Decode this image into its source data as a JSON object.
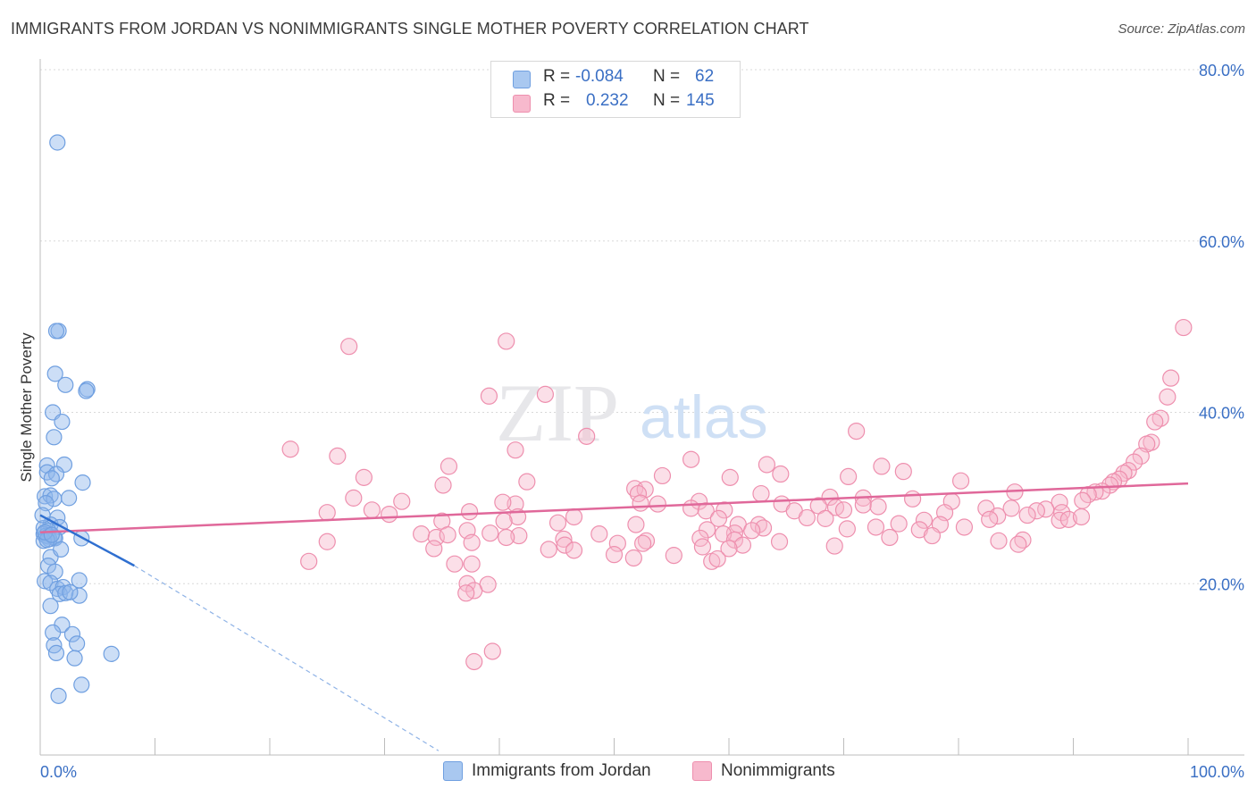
{
  "title": "IMMIGRANTS FROM JORDAN VS NONIMMIGRANTS SINGLE MOTHER POVERTY CORRELATION CHART",
  "source": "Source: ZipAtlas.com",
  "watermark": {
    "zip": "ZIP",
    "atlas": "atlas"
  },
  "legend_top": [
    {
      "r_label": "R =",
      "r_value": "-0.084",
      "n_label": "N =",
      "n_value": "62",
      "color": "#a9c8f0",
      "border": "#6f9fe0"
    },
    {
      "r_label": "R =",
      "r_value": "0.232",
      "n_label": "N =",
      "n_value": "145",
      "color": "#f7b9cd",
      "border": "#ee8fae"
    }
  ],
  "legend_bottom": [
    {
      "label": "Immigrants from Jordan",
      "color": "#a9c8f0",
      "border": "#6f9fe0"
    },
    {
      "label": "Nonimmigrants",
      "color": "#f7b9cd",
      "border": "#ee8fae"
    }
  ],
  "chart_data": {
    "type": "scatter",
    "ylabel": "Single Mother Poverty",
    "xlim": [
      0,
      100
    ],
    "ylim": [
      0,
      80
    ],
    "x_tick_labels": {
      "min": "0.0%",
      "max": "100.0%"
    },
    "y_tick_labels": [
      "20.0%",
      "40.0%",
      "60.0%",
      "80.0%"
    ],
    "y_ticks": [
      20,
      40,
      60,
      80
    ],
    "grid": true,
    "series": [
      {
        "name": "Immigrants from Jordan",
        "color": "#8fb6ea",
        "stroke": "#6f9fe0",
        "trend": {
          "x0": 0,
          "y0": 28.0,
          "x1": 8.2,
          "y1": 22.1,
          "dash_to_x": 34.7,
          "dash_to_y": 0.5
        },
        "points": [
          [
            1.5,
            71.5
          ],
          [
            1.6,
            49.5
          ],
          [
            1.4,
            49.5
          ],
          [
            1.3,
            44.5
          ],
          [
            2.2,
            43.2
          ],
          [
            4.1,
            42.7
          ],
          [
            4.0,
            42.5
          ],
          [
            1.1,
            40.0
          ],
          [
            1.9,
            38.9
          ],
          [
            1.2,
            37.1
          ],
          [
            0.6,
            33.8
          ],
          [
            2.1,
            33.9
          ],
          [
            0.6,
            33.0
          ],
          [
            1.4,
            32.8
          ],
          [
            1.0,
            32.3
          ],
          [
            3.7,
            31.8
          ],
          [
            0.4,
            30.2
          ],
          [
            0.9,
            30.3
          ],
          [
            1.2,
            29.9
          ],
          [
            0.5,
            29.4
          ],
          [
            1.5,
            27.7
          ],
          [
            0.9,
            26.9
          ],
          [
            0.3,
            26.5
          ],
          [
            1.7,
            26.6
          ],
          [
            0.7,
            26.2
          ],
          [
            0.3,
            25.8
          ],
          [
            0.5,
            25.6
          ],
          [
            0.7,
            25.5
          ],
          [
            1.2,
            25.4
          ],
          [
            0.8,
            25.2
          ],
          [
            1.3,
            25.3
          ],
          [
            3.6,
            25.3
          ],
          [
            0.3,
            25.0
          ],
          [
            0.6,
            25.1
          ],
          [
            0.9,
            23.1
          ],
          [
            0.7,
            22.1
          ],
          [
            1.3,
            21.4
          ],
          [
            3.4,
            20.4
          ],
          [
            0.4,
            20.3
          ],
          [
            0.9,
            20.1
          ],
          [
            1.5,
            19.4
          ],
          [
            2.0,
            19.6
          ],
          [
            1.7,
            18.8
          ],
          [
            2.2,
            18.9
          ],
          [
            3.4,
            18.6
          ],
          [
            0.9,
            17.4
          ],
          [
            1.9,
            15.2
          ],
          [
            2.8,
            14.1
          ],
          [
            1.1,
            14.3
          ],
          [
            1.2,
            12.8
          ],
          [
            3.2,
            13.0
          ],
          [
            1.4,
            11.9
          ],
          [
            6.2,
            11.8
          ],
          [
            3.0,
            11.3
          ],
          [
            3.6,
            8.2
          ],
          [
            1.6,
            6.9
          ],
          [
            0.4,
            26.0
          ],
          [
            1.0,
            25.7
          ],
          [
            0.2,
            28.0
          ],
          [
            2.5,
            30.0
          ],
          [
            1.8,
            24.0
          ],
          [
            2.6,
            19.0
          ]
        ]
      },
      {
        "name": "Nonimmigrants",
        "color": "#f7b9cd",
        "stroke": "#ee8fae",
        "trend": {
          "x0": 0,
          "y0": 26.0,
          "x1": 100,
          "y1": 31.7
        },
        "points": [
          [
            26.9,
            47.7
          ],
          [
            40.6,
            48.3
          ],
          [
            99.6,
            49.9
          ],
          [
            98.5,
            44.0
          ],
          [
            98.2,
            41.8
          ],
          [
            44.0,
            42.1
          ],
          [
            39.1,
            41.9
          ],
          [
            97.6,
            39.3
          ],
          [
            97.1,
            38.9
          ],
          [
            71.1,
            37.8
          ],
          [
            47.6,
            37.2
          ],
          [
            96.8,
            36.5
          ],
          [
            96.4,
            36.3
          ],
          [
            95.9,
            34.9
          ],
          [
            21.8,
            35.7
          ],
          [
            25.9,
            34.9
          ],
          [
            41.4,
            35.6
          ],
          [
            56.7,
            34.5
          ],
          [
            95.3,
            34.2
          ],
          [
            94.8,
            33.2
          ],
          [
            35.6,
            33.7
          ],
          [
            73.3,
            33.7
          ],
          [
            63.3,
            33.9
          ],
          [
            75.2,
            33.1
          ],
          [
            94.4,
            32.9
          ],
          [
            64.5,
            32.8
          ],
          [
            54.2,
            32.6
          ],
          [
            94.0,
            32.2
          ],
          [
            28.2,
            32.4
          ],
          [
            70.4,
            32.5
          ],
          [
            60.1,
            32.4
          ],
          [
            93.5,
            31.9
          ],
          [
            80.2,
            32.0
          ],
          [
            35.1,
            31.5
          ],
          [
            42.4,
            31.9
          ],
          [
            51.8,
            31.1
          ],
          [
            52.7,
            31.0
          ],
          [
            93.2,
            31.5
          ],
          [
            92.5,
            30.8
          ],
          [
            52.1,
            30.5
          ],
          [
            62.8,
            30.5
          ],
          [
            84.9,
            30.7
          ],
          [
            91.9,
            30.7
          ],
          [
            68.8,
            30.1
          ],
          [
            76.0,
            29.9
          ],
          [
            27.3,
            30.0
          ],
          [
            57.4,
            29.6
          ],
          [
            91.3,
            30.4
          ],
          [
            71.7,
            30.0
          ],
          [
            41.4,
            29.3
          ],
          [
            67.8,
            29.1
          ],
          [
            53.8,
            29.3
          ],
          [
            79.4,
            29.6
          ],
          [
            40.3,
            29.5
          ],
          [
            71.7,
            29.2
          ],
          [
            64.6,
            29.3
          ],
          [
            31.5,
            29.6
          ],
          [
            73.0,
            29.0
          ],
          [
            88.8,
            29.5
          ],
          [
            69.3,
            28.9
          ],
          [
            82.4,
            28.8
          ],
          [
            87.6,
            28.7
          ],
          [
            84.6,
            28.8
          ],
          [
            70.0,
            28.6
          ],
          [
            90.8,
            29.7
          ],
          [
            52.3,
            29.4
          ],
          [
            56.7,
            28.8
          ],
          [
            37.4,
            28.4
          ],
          [
            86.8,
            28.5
          ],
          [
            89.0,
            28.3
          ],
          [
            65.7,
            28.5
          ],
          [
            58.0,
            28.5
          ],
          [
            78.8,
            28.3
          ],
          [
            86.0,
            28.0
          ],
          [
            25.0,
            28.3
          ],
          [
            28.9,
            28.6
          ],
          [
            59.6,
            28.6
          ],
          [
            30.4,
            28.1
          ],
          [
            41.6,
            27.8
          ],
          [
            46.5,
            27.8
          ],
          [
            68.4,
            27.6
          ],
          [
            83.4,
            27.9
          ],
          [
            82.7,
            27.5
          ],
          [
            88.8,
            27.4
          ],
          [
            59.1,
            27.6
          ],
          [
            66.8,
            27.7
          ],
          [
            77.0,
            27.4
          ],
          [
            89.6,
            27.5
          ],
          [
            45.1,
            27.1
          ],
          [
            40.4,
            27.3
          ],
          [
            35.0,
            27.3
          ],
          [
            90.7,
            27.8
          ],
          [
            74.8,
            27.0
          ],
          [
            78.4,
            26.9
          ],
          [
            60.8,
            26.9
          ],
          [
            51.9,
            26.9
          ],
          [
            62.6,
            26.9
          ],
          [
            60.5,
            25.9
          ],
          [
            33.2,
            25.8
          ],
          [
            59.5,
            25.8
          ],
          [
            37.2,
            26.2
          ],
          [
            58.1,
            26.3
          ],
          [
            72.8,
            26.6
          ],
          [
            80.5,
            26.6
          ],
          [
            63.0,
            26.5
          ],
          [
            62.0,
            26.2
          ],
          [
            70.3,
            26.4
          ],
          [
            76.6,
            26.3
          ],
          [
            39.2,
            25.9
          ],
          [
            41.7,
            25.6
          ],
          [
            48.7,
            25.8
          ],
          [
            77.7,
            25.6
          ],
          [
            45.6,
            25.2
          ],
          [
            57.5,
            25.3
          ],
          [
            52.8,
            25.0
          ],
          [
            74.0,
            25.4
          ],
          [
            83.5,
            25.0
          ],
          [
            60.5,
            25.1
          ],
          [
            64.4,
            24.9
          ],
          [
            85.6,
            25.1
          ],
          [
            34.5,
            25.4
          ],
          [
            35.5,
            25.7
          ],
          [
            40.6,
            25.4
          ],
          [
            52.5,
            24.7
          ],
          [
            61.2,
            24.5
          ],
          [
            85.2,
            24.6
          ],
          [
            25.0,
            24.9
          ],
          [
            37.6,
            24.8
          ],
          [
            50.3,
            24.7
          ],
          [
            44.3,
            24.0
          ],
          [
            45.7,
            24.5
          ],
          [
            46.5,
            23.9
          ],
          [
            34.3,
            24.1
          ],
          [
            57.7,
            24.3
          ],
          [
            69.2,
            24.4
          ],
          [
            60.0,
            24.1
          ],
          [
            51.7,
            23.0
          ],
          [
            50.0,
            23.4
          ],
          [
            55.2,
            23.3
          ],
          [
            58.5,
            22.6
          ],
          [
            59.0,
            22.9
          ],
          [
            23.4,
            22.6
          ],
          [
            36.1,
            22.3
          ],
          [
            37.6,
            22.3
          ],
          [
            37.2,
            20.0
          ],
          [
            39.0,
            19.9
          ],
          [
            37.8,
            19.2
          ],
          [
            37.1,
            18.9
          ],
          [
            39.4,
            12.1
          ],
          [
            37.8,
            10.9
          ]
        ]
      }
    ]
  }
}
